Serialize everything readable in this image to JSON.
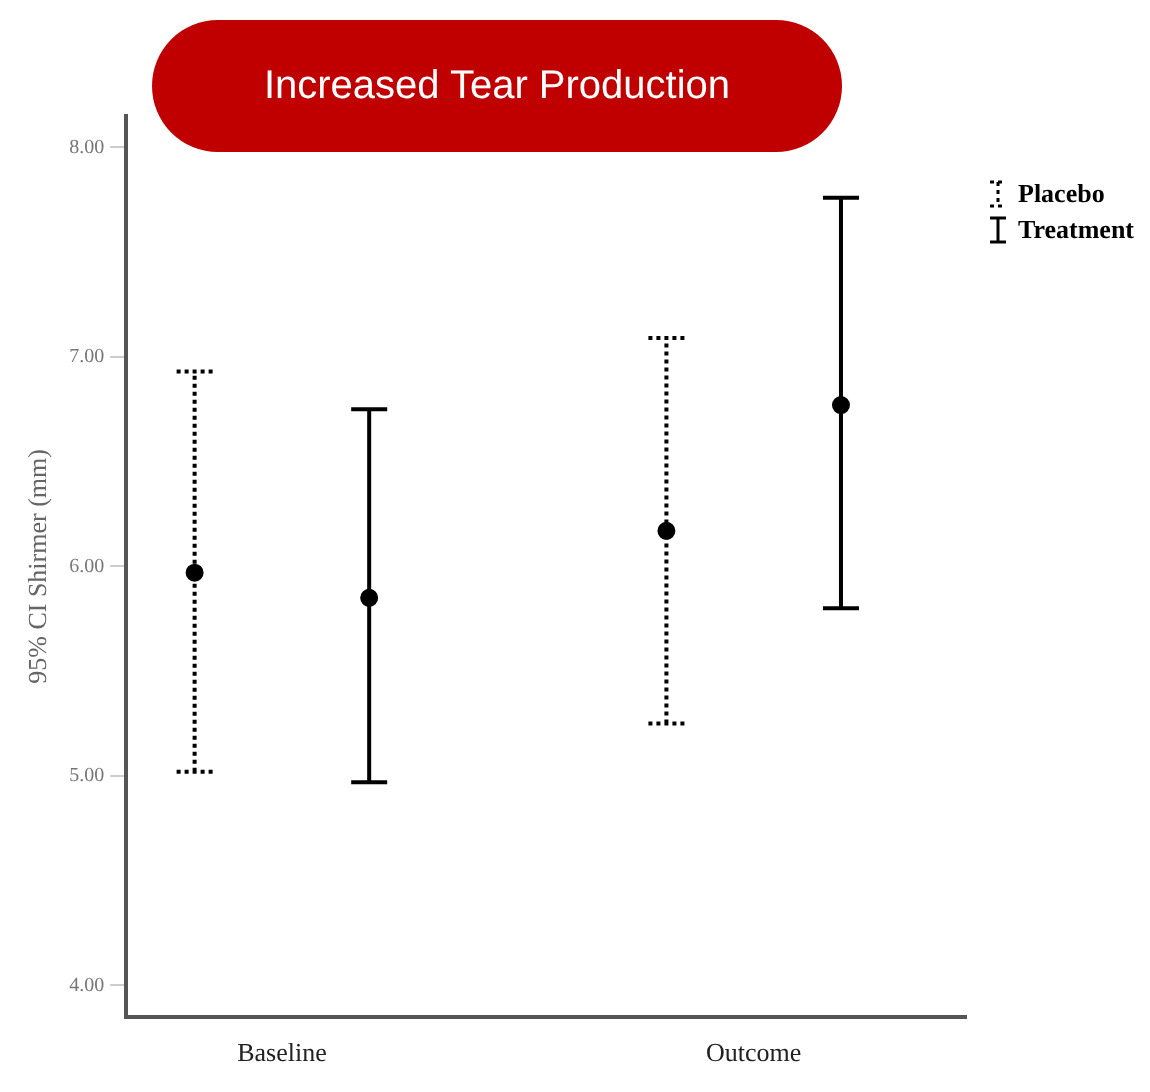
{
  "chart_data": {
    "type": "scatter",
    "title": "Increased Tear Production",
    "ylabel": "95% CI Shirmer (mm)",
    "categories": [
      "Baseline",
      "Outcome"
    ],
    "series": [
      {
        "name": "Placebo",
        "color": "#000000",
        "values": [
          5.97,
          6.17
        ],
        "errors": [
          [
            5.02,
            6.93
          ],
          [
            5.25,
            7.09
          ]
        ],
        "line_style": "dotted"
      },
      {
        "name": "Treatment",
        "color": "#000000",
        "values": [
          5.85,
          6.77
        ],
        "errors": [
          [
            4.97,
            6.75
          ],
          [
            5.8,
            7.76
          ]
        ],
        "line_style": "solid"
      }
    ],
    "ylim": [
      3.85,
      8.15
    ],
    "yticks": [
      {
        "value": 4,
        "label": "4.00"
      },
      {
        "value": 5,
        "label": "5.00"
      },
      {
        "value": 6,
        "label": "6.00"
      },
      {
        "value": 7,
        "label": "7.00"
      },
      {
        "value": 8,
        "label": "8.00"
      }
    ],
    "grid": false,
    "legend": "top right",
    "marker": "circle"
  }
}
